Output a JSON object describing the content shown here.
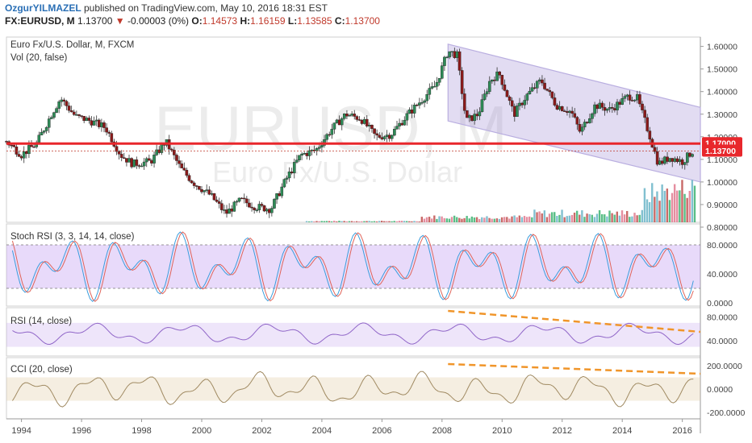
{
  "header": {
    "username": "OzgurYILMAZEL",
    "published_text": " published on TradingView.com, May 10, 2016 18:31 EST",
    "symbol": "FX:EURUSD, M",
    "last": "1.13700",
    "change_arrow": "▼",
    "change": "-0.00003 (0%)",
    "o_label": "O:",
    "o_val": "1.14573",
    "h_label": "H:",
    "h_val": "1.16159",
    "l_label": "L:",
    "l_val": "1.13585",
    "c_label": "C:",
    "c_val": "1.13700"
  },
  "main_pane": {
    "title": "Euro Fx/U.S. Dollar, M, FXCM",
    "vol_label": "Vol (20, false)",
    "watermark_big": "EURUSD, M",
    "watermark_small": "Euro Fx/U.S. Dollar",
    "y_ticks": [
      "1.60000",
      "1.50000",
      "1.40000",
      "1.30000",
      "1.20000",
      "1.10000",
      "1.00000",
      "0.90000",
      "0.80000"
    ],
    "hline_label": "1.17000",
    "price_label": "1.13700",
    "colors": {
      "up": "#2e8b57",
      "down": "#8b1a1a",
      "hline": "#e8272c",
      "channel": "#b9aee0",
      "price_badge": "#e8272c"
    }
  },
  "stoch_pane": {
    "title": "Stoch RSI (3, 3, 14, 14, close)",
    "y_ticks": [
      "80.0000",
      "40.0000",
      "0.0000"
    ]
  },
  "rsi_pane": {
    "title": "RSI (14, close)",
    "y_ticks": [
      "80.0000",
      "40.0000"
    ]
  },
  "cci_pane": {
    "title": "CCI (20, close)",
    "y_ticks": [
      "200.0000",
      "0.0000",
      "-200.0000"
    ]
  },
  "x_axis": {
    "labels": [
      "1994",
      "1996",
      "1998",
      "2000",
      "2002",
      "2004",
      "2006",
      "2008",
      "2010",
      "2012",
      "2014",
      "2016"
    ]
  },
  "chart_data": {
    "type": "line",
    "title": "Euro Fx/U.S. Dollar, M, FXCM",
    "x_range": [
      1993.5,
      2016.6
    ],
    "price": {
      "x": [
        1993.5,
        1994,
        1994.5,
        1995,
        1995.3,
        1995.8,
        1996.3,
        1996.8,
        1997.3,
        1997.7,
        1998.3,
        1998.8,
        1999.3,
        1999.7,
        2000.3,
        2000.8,
        2001.3,
        2001.8,
        2002.3,
        2002.8,
        2003.3,
        2003.8,
        2004.3,
        2004.8,
        2005.3,
        2005.8,
        2006.3,
        2006.8,
        2007.3,
        2007.8,
        2008.2,
        2008.5,
        2008.8,
        2009.2,
        2009.6,
        2009.9,
        2010.4,
        2010.8,
        2011.3,
        2011.8,
        2012.3,
        2012.6,
        2013.1,
        2013.6,
        2014.2,
        2014.5,
        2014.9,
        2015.2,
        2015.6,
        2016.0,
        2016.35
      ],
      "y": [
        1.18,
        1.12,
        1.17,
        1.3,
        1.37,
        1.29,
        1.27,
        1.24,
        1.12,
        1.08,
        1.09,
        1.18,
        1.06,
        1.0,
        0.94,
        0.86,
        0.92,
        0.89,
        0.88,
        1.01,
        1.12,
        1.14,
        1.23,
        1.3,
        1.28,
        1.2,
        1.21,
        1.29,
        1.36,
        1.43,
        1.58,
        1.56,
        1.27,
        1.3,
        1.45,
        1.48,
        1.3,
        1.38,
        1.45,
        1.34,
        1.31,
        1.22,
        1.34,
        1.32,
        1.38,
        1.37,
        1.21,
        1.08,
        1.11,
        1.09,
        1.137
      ]
    },
    "horizontal_level": 1.17,
    "channel": {
      "upper": [
        [
          2008.2,
          1.61
        ],
        [
          2016.6,
          1.33
        ]
      ],
      "lower": [
        [
          2008.2,
          1.27
        ],
        [
          2016.6,
          1.0
        ]
      ]
    },
    "price_ylim": [
      0.8,
      1.62
    ]
  }
}
